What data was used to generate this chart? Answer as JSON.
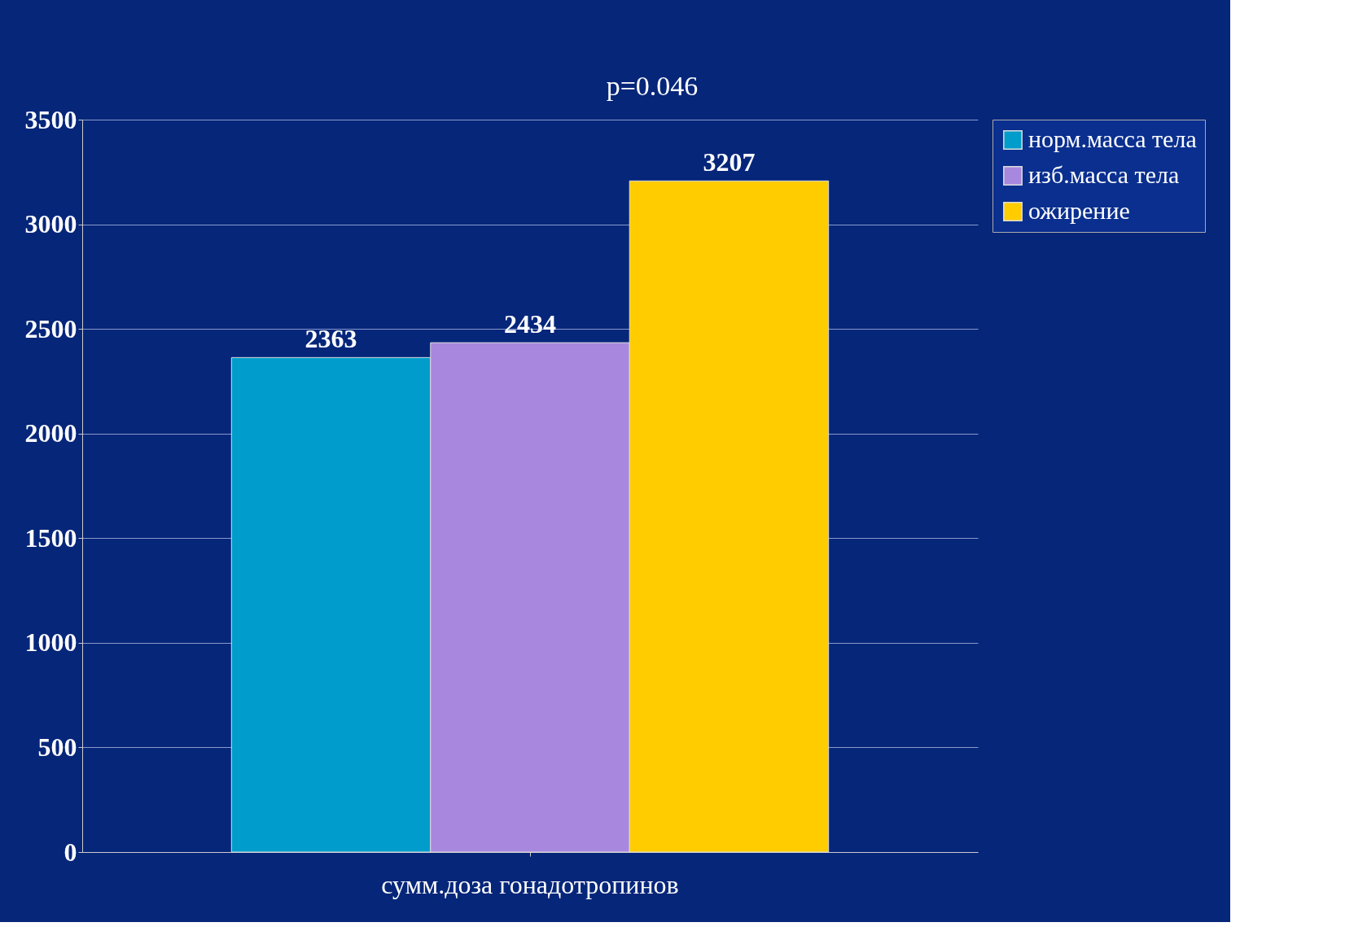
{
  "chart_data": {
    "type": "bar",
    "categories": [
      "сумм.доза гонадотропинов"
    ],
    "series": [
      {
        "name": "норм.масса тела",
        "color": "#009ccc",
        "values": [
          2363
        ]
      },
      {
        "name": "изб.масса тела",
        "color": "#a788de",
        "values": [
          2434
        ]
      },
      {
        "name": "ожирение",
        "color": "#ffcc00",
        "values": [
          3207
        ]
      }
    ],
    "ylim": [
      0,
      3500
    ],
    "yticks": [
      0,
      500,
      1000,
      1500,
      2000,
      2500,
      3000,
      3500
    ],
    "grid": "y",
    "legend": "right",
    "data_labels": true,
    "annotations": [
      "p=0.046"
    ]
  }
}
